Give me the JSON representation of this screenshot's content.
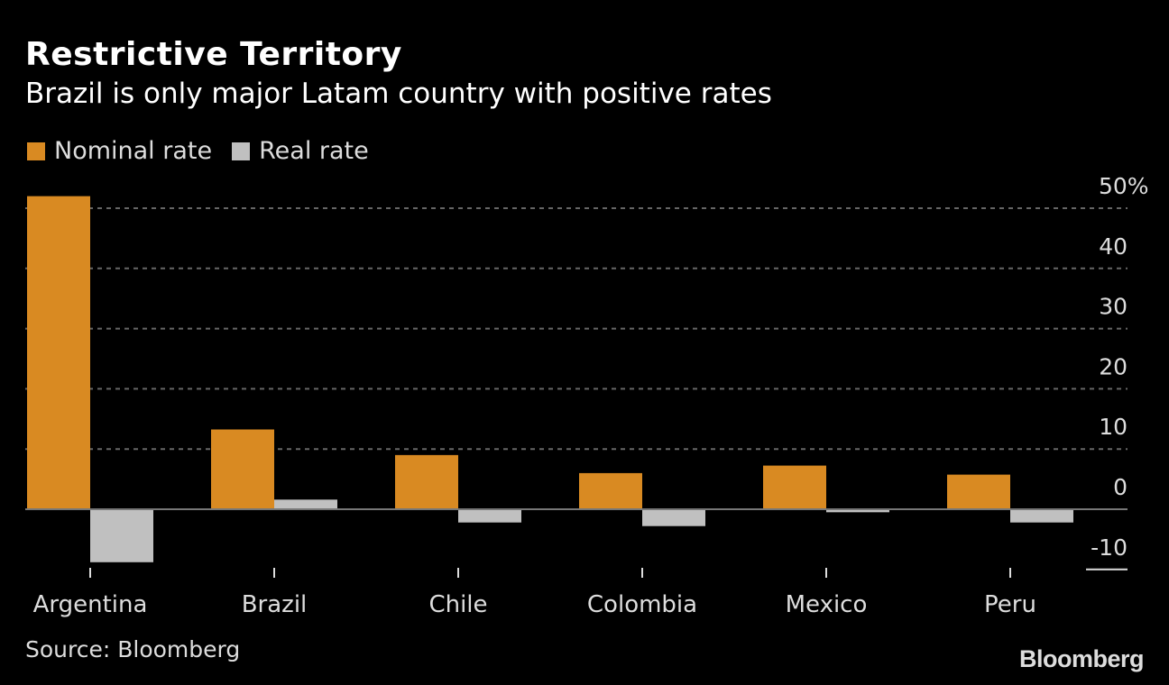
{
  "chart_data": {
    "type": "bar",
    "title": "Restrictive Territory",
    "subtitle": "Brazil is only major Latam country with positive rates",
    "categories": [
      "Argentina",
      "Brazil",
      "Chile",
      "Colombia",
      "Mexico",
      "Peru"
    ],
    "series": [
      {
        "name": "Nominal rate",
        "color": "#d98a22",
        "values": [
          52,
          13.25,
          9.0,
          6.0,
          7.25,
          5.75
        ]
      },
      {
        "name": "Real rate",
        "color": "#c0c0c0",
        "values": [
          -8.8,
          1.6,
          -2.2,
          -2.8,
          -0.5,
          -2.2
        ]
      }
    ],
    "y_ticks": [
      "50%",
      "40",
      "30",
      "20",
      "10",
      "0",
      "-10"
    ],
    "y_tick_values": [
      50,
      40,
      30,
      20,
      10,
      0,
      -10
    ],
    "ylim": [
      -10,
      52
    ],
    "grid": true,
    "y_axis_position": "right",
    "legend_position": "top-left",
    "source": "Source: Bloomberg",
    "brand": "Bloomberg"
  }
}
